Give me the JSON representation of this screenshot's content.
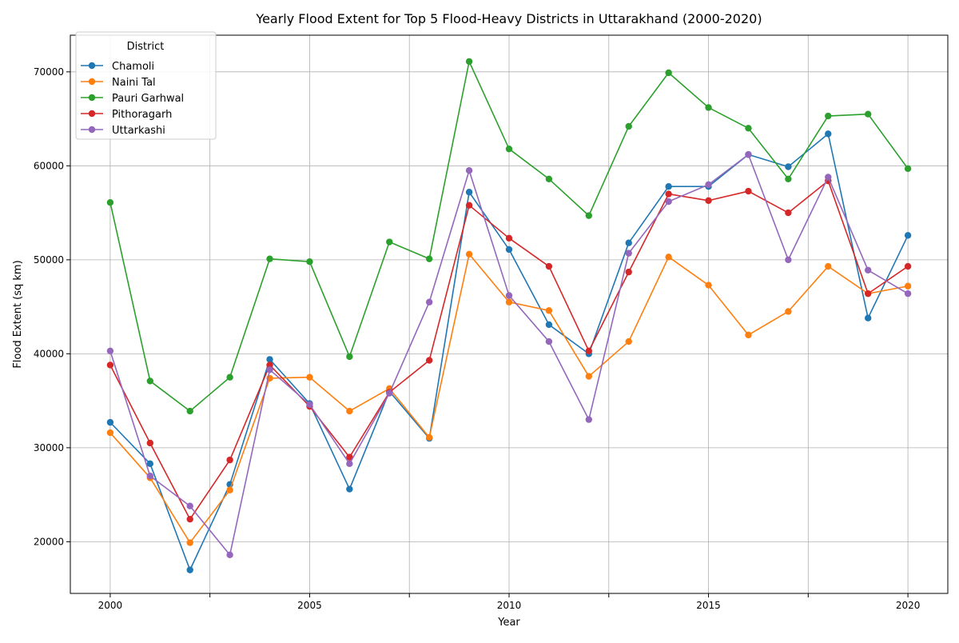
{
  "chart_data": {
    "type": "line",
    "title": "Yearly Flood Extent for Top 5 Flood-Heavy Districts in Uttarakhand (2000-2020)",
    "xlabel": "Year",
    "ylabel": "Flood Extent (sq km)",
    "x": [
      2000,
      2001,
      2002,
      2003,
      2004,
      2005,
      2006,
      2007,
      2008,
      2009,
      2010,
      2011,
      2012,
      2013,
      2014,
      2015,
      2016,
      2017,
      2018,
      2019,
      2020
    ],
    "xlim": [
      1999,
      2021
    ],
    "ylim": [
      14500,
      73900
    ],
    "xticks": [
      2000,
      2002.5,
      2005,
      2007.5,
      2010,
      2012.5,
      2015,
      2017.5,
      2020
    ],
    "xtick_labels": [
      "2000",
      "",
      "2005",
      "",
      "2010",
      "",
      "2015",
      "",
      "2020"
    ],
    "yticks": [
      20000,
      30000,
      40000,
      50000,
      60000,
      70000
    ],
    "ytick_labels": [
      "20000",
      "30000",
      "40000",
      "50000",
      "60000",
      "70000"
    ],
    "grid": true,
    "legend": {
      "title": "District",
      "placement": "top-left"
    },
    "series": [
      {
        "name": "Chamoli",
        "color": "#1f77b4",
        "values": [
          32700,
          28300,
          17000,
          26100,
          39400,
          34700,
          25600,
          36000,
          31000,
          57200,
          51100,
          43100,
          40000,
          51800,
          57800,
          57800,
          61200,
          59900,
          63400,
          43800,
          52600
        ]
      },
      {
        "name": "Naini Tal",
        "color": "#ff7f0e",
        "values": [
          31600,
          26800,
          19900,
          25500,
          37400,
          37500,
          33900,
          36300,
          31100,
          50600,
          45500,
          44600,
          37600,
          41300,
          50300,
          47300,
          42000,
          44500,
          49300,
          46400,
          47200
        ]
      },
      {
        "name": "Pauri Garhwal",
        "color": "#2ca02c",
        "values": [
          56100,
          37100,
          33900,
          37500,
          50100,
          49800,
          39700,
          51900,
          50100,
          71100,
          61800,
          58600,
          54700,
          64200,
          69900,
          66200,
          64000,
          58600,
          65300,
          65500,
          59700
        ]
      },
      {
        "name": "Pithoragarh",
        "color": "#d62728",
        "values": [
          38800,
          30500,
          22400,
          28700,
          38800,
          34400,
          29000,
          35900,
          39300,
          55800,
          52300,
          49300,
          40300,
          48700,
          57000,
          56300,
          57300,
          55000,
          58400,
          46400,
          49300
        ]
      },
      {
        "name": "Uttarkashi",
        "color": "#9467bd",
        "values": [
          40300,
          27000,
          23800,
          18600,
          38300,
          34600,
          28300,
          35800,
          45500,
          59500,
          46200,
          41300,
          33000,
          50700,
          56200,
          58000,
          61200,
          50000,
          58800,
          48900,
          46400
        ]
      }
    ]
  }
}
